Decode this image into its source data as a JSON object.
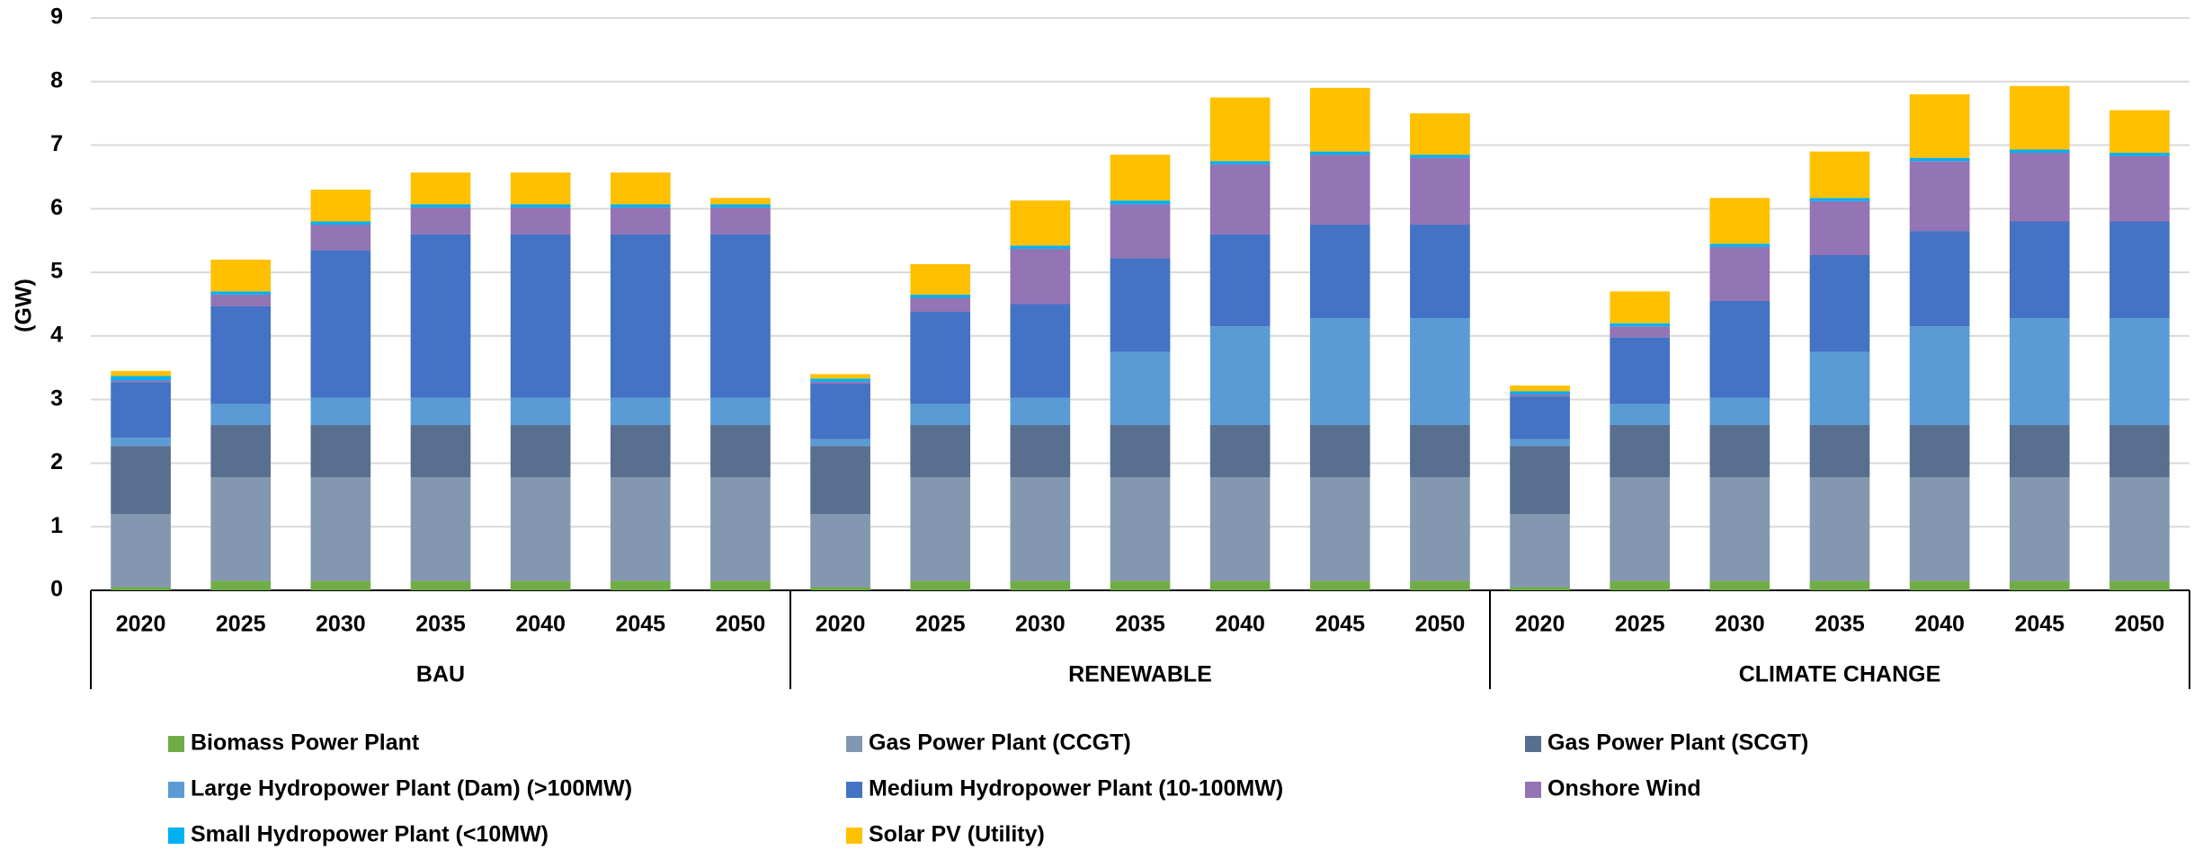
{
  "chart_data": {
    "type": "stacked-bar",
    "y_label": "(GW)",
    "ylim": [
      0,
      9
    ],
    "yticks": [
      0,
      1,
      2,
      3,
      4,
      5,
      6,
      7,
      8,
      9
    ],
    "grid": true,
    "legend": "bottom",
    "groups": [
      {
        "name": "BAU",
        "categories": [
          "2020",
          "2025",
          "2030",
          "2035",
          "2040",
          "2045",
          "2050"
        ]
      },
      {
        "name": "RENEWABLE",
        "categories": [
          "2020",
          "2025",
          "2030",
          "2035",
          "2040",
          "2045",
          "2050"
        ]
      },
      {
        "name": "CLIMATE CHANGE",
        "categories": [
          "2020",
          "2025",
          "2030",
          "2035",
          "2040",
          "2045",
          "2050"
        ]
      }
    ],
    "series": [
      {
        "name": "Biomass Power Plant",
        "color": "#70ad47",
        "values": [
          0.05,
          0.15,
          0.15,
          0.15,
          0.15,
          0.15,
          0.15,
          0.05,
          0.15,
          0.15,
          0.15,
          0.15,
          0.15,
          0.15,
          0.05,
          0.15,
          0.15,
          0.15,
          0.15,
          0.15,
          0.15
        ]
      },
      {
        "name": "Gas Power Plant (CCGT)",
        "color": "#8497b0",
        "values": [
          1.15,
          1.63,
          1.63,
          1.63,
          1.63,
          1.63,
          1.63,
          1.15,
          1.63,
          1.63,
          1.63,
          1.63,
          1.63,
          1.63,
          1.15,
          1.63,
          1.63,
          1.63,
          1.63,
          1.63,
          1.63
        ]
      },
      {
        "name": "Gas Power Plant (SCGT)",
        "color": "#596f8f",
        "values": [
          1.07,
          0.82,
          0.82,
          0.82,
          0.82,
          0.82,
          0.82,
          1.07,
          0.82,
          0.82,
          0.82,
          0.82,
          0.82,
          0.82,
          1.07,
          0.82,
          0.82,
          0.82,
          0.82,
          0.82,
          0.82
        ]
      },
      {
        "name": "Large Hydropower Plant (Dam) (>100MW)",
        "color": "#5b9bd5",
        "values": [
          0.13,
          0.33,
          0.43,
          0.43,
          0.43,
          0.43,
          0.43,
          0.11,
          0.33,
          0.43,
          1.15,
          1.55,
          1.68,
          1.68,
          0.11,
          0.33,
          0.43,
          1.15,
          1.55,
          1.68,
          1.68
        ]
      },
      {
        "name": "Medium Hydropower Plant (10-100MW)",
        "color": "#4472c4",
        "values": [
          0.87,
          1.54,
          2.32,
          2.57,
          2.57,
          2.57,
          2.57,
          0.87,
          1.45,
          1.47,
          1.47,
          1.45,
          1.47,
          1.47,
          0.67,
          1.05,
          1.52,
          1.52,
          1.5,
          1.52,
          1.52
        ]
      },
      {
        "name": "Onshore Wind",
        "color": "#9374b4",
        "values": [
          0.03,
          0.18,
          0.4,
          0.42,
          0.42,
          0.42,
          0.42,
          0.03,
          0.22,
          0.87,
          0.85,
          1.1,
          1.1,
          1.05,
          0.03,
          0.17,
          0.85,
          0.85,
          1.1,
          1.08,
          1.03
        ]
      },
      {
        "name": "Small Hydropower Plant (<10MW)",
        "color": "#00b0f0",
        "values": [
          0.07,
          0.05,
          0.05,
          0.05,
          0.05,
          0.05,
          0.05,
          0.05,
          0.05,
          0.05,
          0.06,
          0.05,
          0.05,
          0.05,
          0.05,
          0.05,
          0.05,
          0.05,
          0.05,
          0.05,
          0.05
        ]
      },
      {
        "name": "Solar PV (Utility)",
        "color": "#ffc000",
        "values": [
          0.08,
          0.5,
          0.5,
          0.5,
          0.5,
          0.5,
          0.1,
          0.07,
          0.48,
          0.71,
          0.72,
          1.0,
          1.0,
          0.65,
          0.09,
          0.5,
          0.72,
          0.73,
          1.0,
          1.0,
          0.67
        ]
      }
    ]
  }
}
